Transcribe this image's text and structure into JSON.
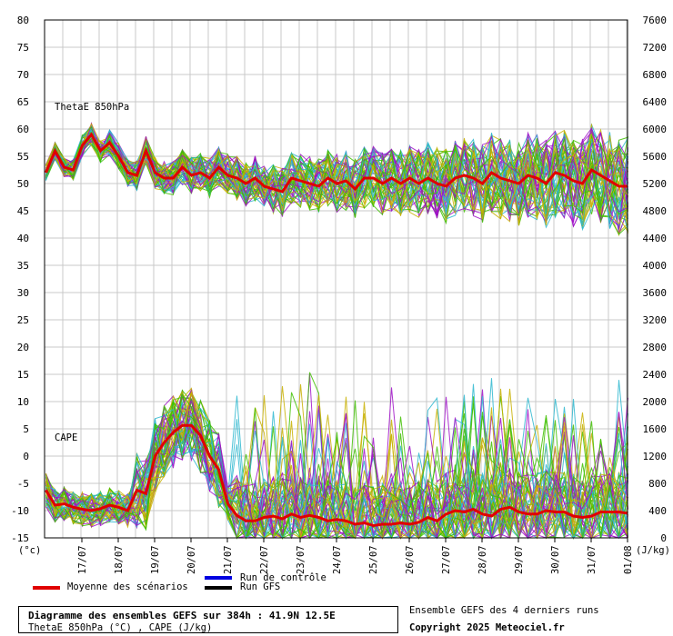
{
  "chart_data": {
    "type": "line",
    "title": "Diagramme des ensembles GEFS sur 384h : 41.9N 12.5E",
    "subtitle": "ThetaE 850hPa (°C) , CAPE (J/kg)",
    "left_unit": "(°c)",
    "right_unit": "(J/kg)",
    "left_ticks": [
      80,
      75,
      70,
      65,
      60,
      55,
      50,
      45,
      40,
      35,
      30,
      25,
      20,
      15,
      10,
      5,
      0,
      -5,
      -10,
      -15
    ],
    "right_ticks": [
      7600,
      7200,
      6800,
      6400,
      6000,
      5600,
      5200,
      4800,
      4400,
      4000,
      3600,
      3200,
      2800,
      2400,
      2000,
      1600,
      1200,
      800,
      400,
      0
    ],
    "ylim_left": [
      -15,
      80
    ],
    "ylim_right": [
      0,
      7600
    ],
    "x_ticks": [
      "17/07",
      "18/07",
      "19/07",
      "20/07",
      "21/07",
      "22/07",
      "23/07",
      "24/07",
      "25/07",
      "26/07",
      "27/07",
      "28/07",
      "29/07",
      "30/07",
      "31/07",
      "01/08"
    ],
    "panel_labels": [
      "ThetaE 850hPa",
      "CAPE"
    ],
    "series": [
      {
        "name": "Moyenne des scénarios (ThetaE 850hPa)",
        "axis": "left",
        "color": "#e00000",
        "x_days": [
          0,
          0.25,
          0.5,
          0.75,
          1,
          1.25,
          1.5,
          1.75,
          2,
          2.25,
          2.5,
          2.75,
          3,
          3.25,
          3.5,
          3.75,
          4,
          4.25,
          4.5,
          4.75,
          5,
          5.25,
          5.5,
          5.75,
          6,
          6.25,
          6.5,
          6.75,
          7,
          7.25,
          7.5,
          7.75,
          8,
          8.25,
          8.5,
          8.75,
          9,
          9.25,
          9.5,
          9.75,
          10,
          10.25,
          10.5,
          10.75,
          11,
          11.25,
          11.5,
          11.75,
          12,
          12.25,
          12.5,
          12.75,
          13,
          13.25,
          13.5,
          13.75,
          14,
          14.25,
          14.5,
          14.75,
          15,
          15.25,
          15.5,
          15.75,
          16
        ],
        "values": [
          52,
          56,
          53,
          52.5,
          57,
          59,
          56,
          57.5,
          55,
          52,
          51.5,
          56,
          52,
          51,
          51,
          53,
          51.5,
          52,
          51,
          53,
          51.5,
          51,
          50,
          51,
          49.5,
          49,
          48.5,
          51,
          50.5,
          50,
          49.5,
          51,
          50,
          50.5,
          49,
          51,
          51,
          50,
          51,
          50,
          51,
          50,
          51,
          50,
          49.5,
          51,
          51.5,
          51,
          50,
          52,
          51,
          50.5,
          50,
          51.5,
          51,
          50,
          52,
          51.5,
          50.5,
          50,
          52.5,
          51.5,
          50.5,
          49.5,
          49.5
        ]
      },
      {
        "name": "Moyenne des scénarios (CAPE)",
        "axis": "right",
        "color": "#e00000",
        "x_days": [
          0,
          0.25,
          0.5,
          0.75,
          1,
          1.25,
          1.5,
          1.75,
          2,
          2.25,
          2.5,
          2.75,
          3,
          3.25,
          3.5,
          3.75,
          4,
          4.25,
          4.5,
          4.75,
          5,
          5.25,
          5.5,
          5.75,
          6,
          6.25,
          6.5,
          6.75,
          7,
          7.25,
          7.5,
          7.75,
          8,
          8.25,
          8.5,
          8.75,
          9,
          9.25,
          9.5,
          9.75,
          10,
          10.25,
          10.5,
          10.75,
          11,
          11.25,
          11.5,
          11.75,
          12,
          12.25,
          12.5,
          12.75,
          13,
          13.25,
          13.5,
          13.75,
          14,
          14.25,
          14.5,
          14.75,
          15,
          15.25,
          15.5,
          15.75,
          16
        ],
        "values": [
          700,
          480,
          500,
          450,
          420,
          400,
          430,
          480,
          450,
          400,
          700,
          650,
          1200,
          1400,
          1550,
          1650,
          1650,
          1500,
          1200,
          1000,
          500,
          330,
          250,
          250,
          300,
          320,
          280,
          350,
          300,
          330,
          300,
          250,
          270,
          250,
          200,
          220,
          180,
          200,
          200,
          220,
          200,
          230,
          300,
          250,
          350,
          400,
          380,
          420,
          350,
          320,
          420,
          450,
          380,
          350,
          350,
          400,
          380,
          380,
          320,
          300,
          320,
          380,
          380,
          380,
          360
        ]
      }
    ],
    "legend": [
      {
        "label": "Moyenne des scénarios",
        "color": "#e00000"
      },
      {
        "label": "Run de contrôle",
        "color": "#0000e0"
      },
      {
        "label": "Run GFS",
        "color": "#000000"
      }
    ],
    "ensemble_colors": [
      "#2db7cf",
      "#a010c8",
      "#c8b000",
      "#40c000"
    ],
    "ensemble_note": "Ensemble GEFS des 4 derniers runs",
    "credit": "Copyright 2025 Meteociel.fr",
    "grid": true
  }
}
